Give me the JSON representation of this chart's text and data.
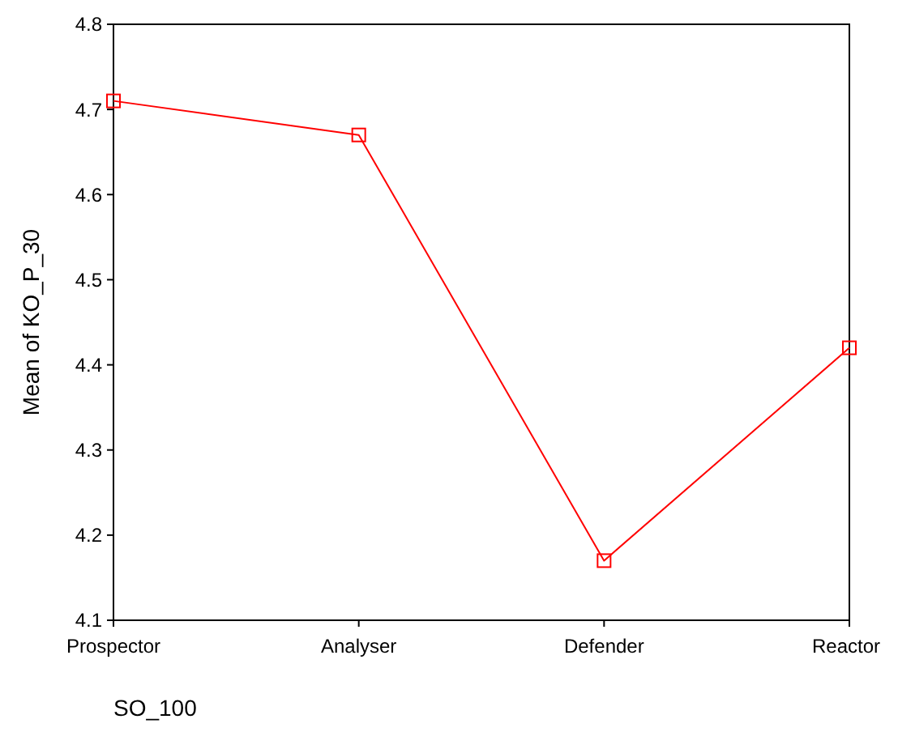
{
  "chart_data": {
    "type": "line",
    "xlabel": "SO_100",
    "ylabel": "Mean of KO_P_30",
    "categories": [
      "Prospector",
      "Analyser",
      "Defender",
      "Reactor"
    ],
    "series": [
      {
        "color": "#ff0000",
        "values": [
          4.71,
          4.67,
          4.17,
          4.42
        ]
      }
    ],
    "ylim": [
      4.1,
      4.8
    ],
    "yticks": [
      4.1,
      4.2,
      4.3,
      4.4,
      4.5,
      4.6,
      4.7,
      4.8
    ],
    "grid": false,
    "marker": "square",
    "line_style": "solid"
  }
}
